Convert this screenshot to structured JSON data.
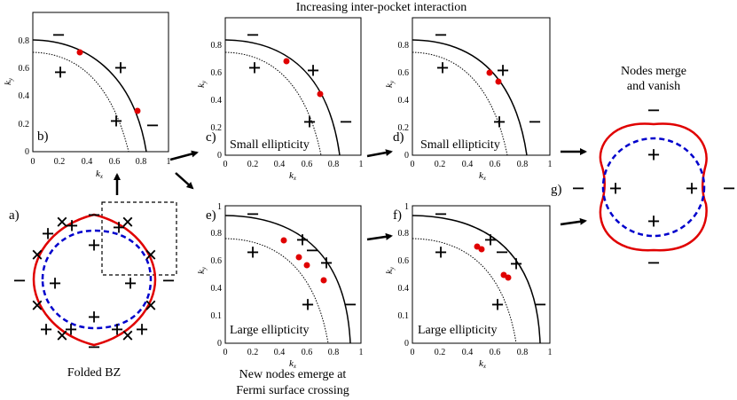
{
  "header": "Increasing inter-pocket interaction",
  "axes": {
    "x_label": "k",
    "x_sub": "x",
    "y_label": "k",
    "y_sub": "y",
    "x_ticks": [
      "0",
      "0.2",
      "0.4",
      "0.6",
      "0.8",
      "1"
    ],
    "y_ticks": [
      "0",
      "0.2",
      "0.4",
      "0.6",
      "0.8"
    ],
    "y_ticks_large": [
      "0",
      "0.1",
      "0.4",
      "0.6",
      "0.8",
      "1"
    ]
  },
  "panels": {
    "a": {
      "label": "a)",
      "caption": "Folded BZ"
    },
    "b": {
      "label": "b)"
    },
    "c": {
      "label": "c)",
      "note": "Small ellipticity"
    },
    "d": {
      "label": "d)",
      "note": "Small ellipticity"
    },
    "e": {
      "label": "e)",
      "note": "Large ellipticity"
    },
    "f": {
      "label": "f)",
      "note": "Large ellipticity"
    },
    "g": {
      "label": "g)",
      "caption_line1": "Nodes merge",
      "caption_line2": "and vanish"
    }
  },
  "bottom_caption": {
    "line1": "New nodes emerge at",
    "line2": "Fermi surface crossing"
  },
  "signs": {
    "plus": "+",
    "minus": "−",
    "cross": "×"
  },
  "colors": {
    "pocket_red": "#e00000",
    "pocket_blue": "#0000cc",
    "node": "#e00000",
    "line": "#000000"
  }
}
